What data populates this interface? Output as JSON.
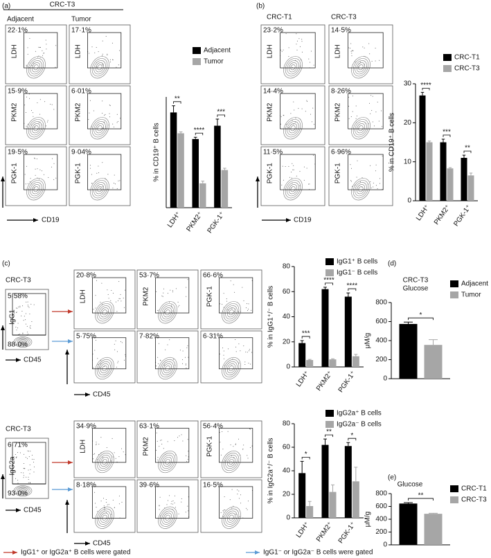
{
  "panel_labels": [
    "(a)",
    "(b)",
    "(c)",
    "(d)",
    "(e)"
  ],
  "flow": {
    "a": {
      "header": "CRC-T3",
      "columns": [
        "Adjacent",
        "Tumor"
      ],
      "rows": [
        "LDH",
        "PKM2",
        "PGK-1"
      ],
      "percents": [
        [
          "22·1%",
          "17·1%"
        ],
        [
          "15·9%",
          "6·01%"
        ],
        [
          "19·5%",
          "9·04%"
        ]
      ],
      "x_marker": "CD19"
    },
    "b": {
      "columns": [
        "CRC-T1",
        "CRC-T3"
      ],
      "rows": [
        "LDH",
        "PKM2",
        "PGK-1"
      ],
      "percents": [
        [
          "23·2%",
          "14·5%"
        ],
        [
          "14·4%",
          "8·26%"
        ],
        [
          "11·5%",
          "6·96%"
        ]
      ],
      "x_marker": "CD19"
    },
    "c_top": {
      "sample": "CRC-T3",
      "gate_marker": "IgG1",
      "gate_percents": [
        "5·58%",
        "88·0%"
      ],
      "gate_x_marker": "CD45",
      "columns": [
        "LDH",
        "PKM2",
        "PGK-1"
      ],
      "percents": [
        [
          "20·8%",
          "53·7%",
          "66·6%"
        ],
        [
          "5·75%",
          "7·82%",
          "6·31%"
        ]
      ],
      "x_marker": "CD45"
    },
    "c_bottom": {
      "sample": "CRC-T3",
      "gate_marker": "IgG2a",
      "gate_percents": [
        "6·71%",
        "93·0%"
      ],
      "gate_x_marker": "CD45",
      "columns": [
        "LDH",
        "PKM2",
        "PGK-1"
      ],
      "percents": [
        [
          "34·9%",
          "63·1%",
          "56·4%"
        ],
        [
          "8·18%",
          "39·6%",
          "16·5%"
        ]
      ],
      "x_marker": "CD45"
    }
  },
  "footer": [
    "IgG1⁺ or IgG2a⁺ B cells were gated",
    "IgG1⁻ or IgG2a⁻ B cells were gated"
  ],
  "chart_data": [
    {
      "type": "bar",
      "ylabel": "% in CD19⁺ B cells",
      "categories": [
        "LDH⁺",
        "PKM2⁺",
        "PGK-1⁺"
      ],
      "series": [
        {
          "name": "Adjacent",
          "color": "#000000",
          "values": [
            21.5,
            15.5,
            18.5
          ],
          "errors": [
            1.5,
            0.4,
            1.5
          ]
        },
        {
          "name": "Tumor",
          "color": "#a6a6a6",
          "values": [
            16.8,
            5.5,
            8.5
          ],
          "errors": [
            0.3,
            0.5,
            0.4
          ]
        }
      ],
      "significance": [
        "**",
        "****",
        "***"
      ],
      "ylim": [
        0,
        25
      ]
    },
    {
      "type": "bar",
      "ylabel": "% in CD19⁺ B cells",
      "categories": [
        "LDH⁺",
        "PKM2⁺",
        "PGK-1⁺"
      ],
      "series": [
        {
          "name": "CRC-T1",
          "color": "#000000",
          "values": [
            27,
            15,
            11
          ],
          "errors": [
            0.8,
            0.8,
            0.7
          ]
        },
        {
          "name": "CRC-T3",
          "color": "#a6a6a6",
          "values": [
            15,
            8.3,
            6.5
          ],
          "errors": [
            0.3,
            0.2,
            0.6
          ]
        }
      ],
      "significance": [
        "****",
        "***",
        "**"
      ],
      "ylim": [
        0,
        30
      ],
      "yticks": [
        0,
        10,
        20,
        30
      ]
    },
    {
      "type": "bar",
      "ylabel": "% in IgG1⁺/⁻ B cells",
      "categories": [
        "LDH⁺",
        "PKM2⁺",
        "PGK-1⁺"
      ],
      "series": [
        {
          "name": "IgG1⁺ B cells",
          "color": "#000000",
          "values": [
            19,
            62,
            56
          ],
          "errors": [
            2,
            1.5,
            3
          ]
        },
        {
          "name": "IgG1⁻ B cells",
          "color": "#a6a6a6",
          "values": [
            5.5,
            6,
            8.5
          ],
          "errors": [
            0.5,
            0.5,
            1.5
          ]
        }
      ],
      "significance": [
        "***",
        "****",
        "****"
      ],
      "ylim": [
        0,
        80
      ],
      "yticks": [
        0,
        20,
        40,
        60,
        80
      ]
    },
    {
      "type": "bar",
      "ylabel": "% in IgG2a⁺/⁻ B cells",
      "categories": [
        "LDH⁺",
        "PKM2⁺",
        "PGK-1⁺"
      ],
      "series": [
        {
          "name": "IgG2a⁺ B cells",
          "color": "#000000",
          "values": [
            38,
            62,
            61
          ],
          "errors": [
            10,
            5,
            3
          ]
        },
        {
          "name": "IgG2a⁻ B cells",
          "color": "#a6a6a6",
          "values": [
            10,
            22,
            31
          ],
          "errors": [
            4,
            6,
            12
          ]
        }
      ],
      "significance": [
        "*",
        "**",
        "*"
      ],
      "ylim": [
        0,
        80
      ],
      "yticks": [
        0,
        20,
        40,
        60,
        80
      ]
    },
    {
      "type": "bar",
      "title": "CRC-T3",
      "subtitle": "Glucose",
      "ylabel": "μM/g",
      "categories": [
        null
      ],
      "series": [
        {
          "name": "Adjacent",
          "color": "#000000",
          "values": [
            575
          ],
          "errors": [
            20
          ]
        },
        {
          "name": "Tumor",
          "color": "#a6a6a6",
          "values": [
            355
          ],
          "errors": [
            55
          ]
        }
      ],
      "significance": [
        "*"
      ],
      "ylim": [
        0,
        800
      ],
      "yticks": [
        0,
        200,
        400,
        600,
        800
      ]
    },
    {
      "type": "bar",
      "title": "Glucose",
      "ylabel": "μM/g",
      "categories": [
        null
      ],
      "series": [
        {
          "name": "CRC-T1",
          "color": "#000000",
          "values": [
            645
          ],
          "errors": [
            15
          ]
        },
        {
          "name": "CRC-T3",
          "color": "#a6a6a6",
          "values": [
            485
          ],
          "errors": [
            8
          ]
        }
      ],
      "significance": [
        "**"
      ],
      "ylim": [
        0,
        800
      ],
      "yticks": [
        0,
        200,
        400,
        600,
        800
      ]
    }
  ]
}
